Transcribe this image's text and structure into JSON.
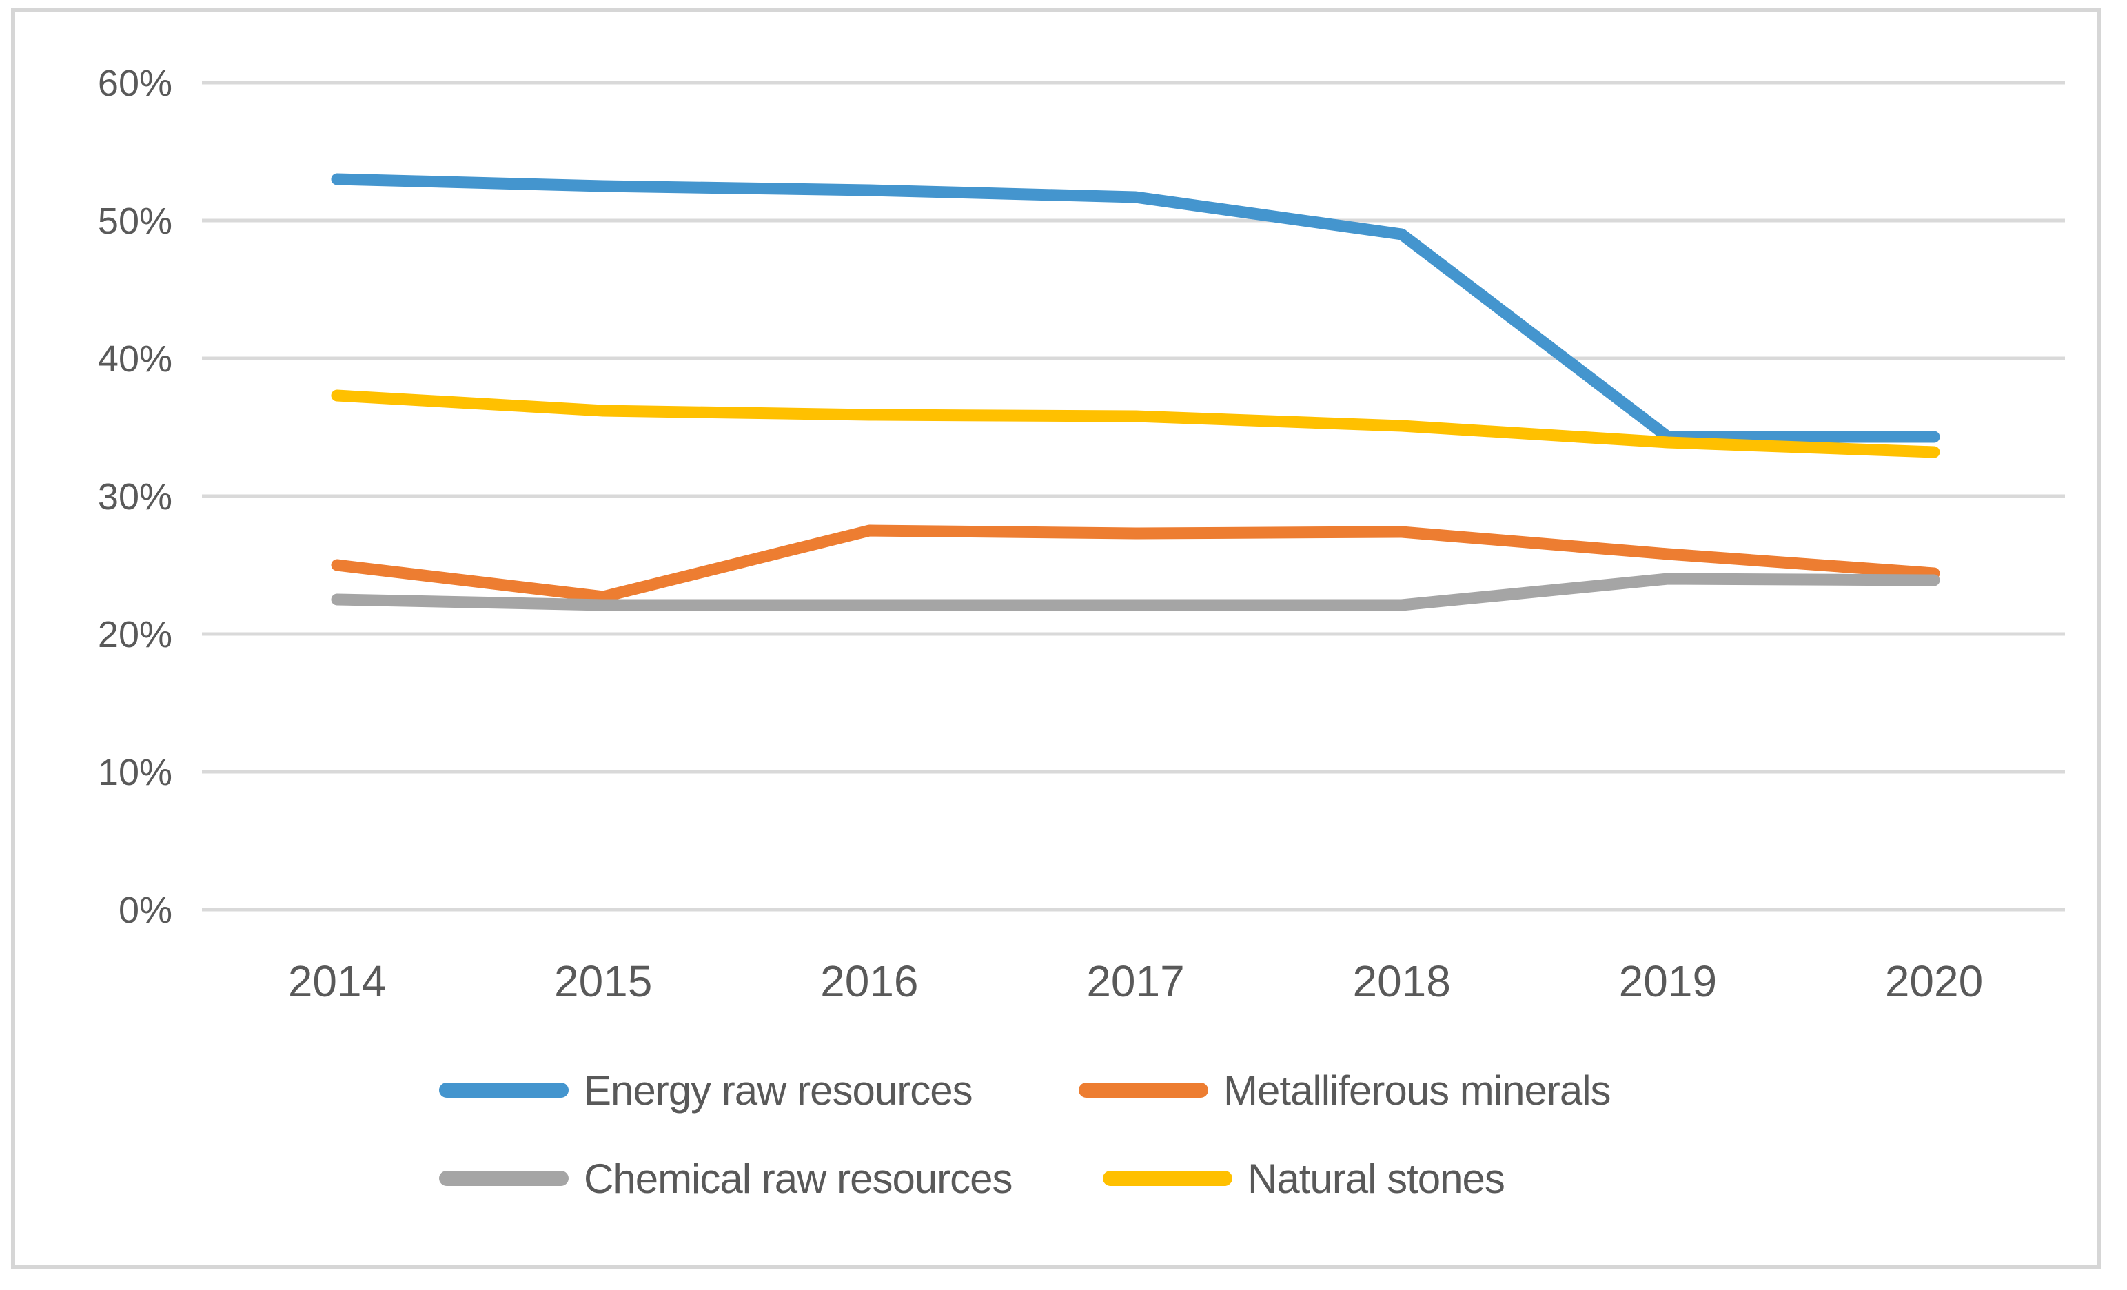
{
  "chart_data": {
    "type": "line",
    "title": "",
    "x_categories": [
      "2014",
      "2015",
      "2016",
      "2017",
      "2018",
      "2019",
      "2020"
    ],
    "y_axis": {
      "min": 0,
      "max": 60,
      "step": 10,
      "tick_labels": [
        "0%",
        "10%",
        "20%",
        "30%",
        "40%",
        "50%",
        "60%"
      ],
      "format": "percent"
    },
    "grid": "horizontal-only",
    "legend_position": "bottom",
    "series": [
      {
        "name": "Energy raw resources",
        "color": "#4495CE",
        "values": [
          53.0,
          52.5,
          52.2,
          51.7,
          49.0,
          34.3,
          34.3
        ]
      },
      {
        "name": "Metalliferous minerals",
        "color": "#ED7D31",
        "values": [
          25.0,
          22.7,
          27.5,
          27.3,
          27.4,
          25.8,
          24.4
        ]
      },
      {
        "name": "Chemical raw resources",
        "color": "#A5A5A5",
        "values": [
          22.5,
          22.1,
          22.1,
          22.1,
          22.1,
          24.0,
          23.9
        ]
      },
      {
        "name": "Natural stones",
        "color": "#FFC000",
        "values": [
          37.3,
          36.2,
          35.9,
          35.8,
          35.1,
          33.9,
          33.2
        ]
      }
    ]
  },
  "colors": {
    "gridline": "#D9D9D9",
    "axis_text": "#595959",
    "frame_border": "#D6D6D6",
    "background": "#FFFFFF"
  }
}
